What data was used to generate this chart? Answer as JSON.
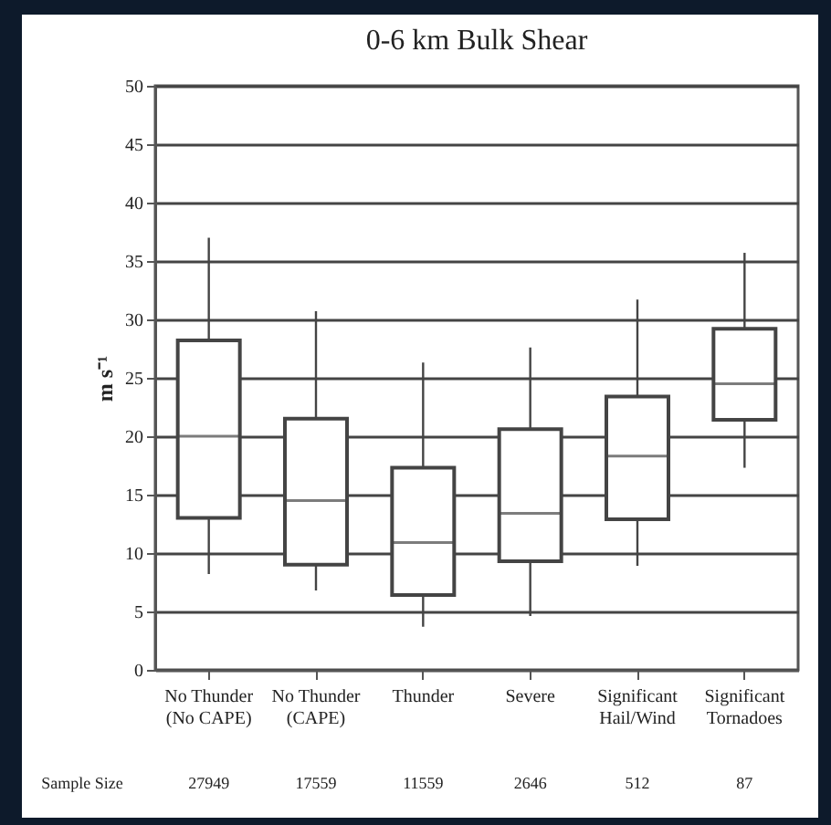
{
  "chart_data": {
    "type": "box",
    "title": "0-6 km Bulk Shear",
    "ylabel": "m s⁻¹",
    "categories": [
      "No Thunder\n(No CAPE)",
      "No Thunder\n(CAPE)",
      "Thunder",
      "Severe",
      "Significant\nHail/Wind",
      "Significant\nTornadoes"
    ],
    "boxes": [
      {
        "low": 8.2,
        "q1": 13,
        "median": 20,
        "q3": 28.2,
        "high": 37
      },
      {
        "low": 6.8,
        "q1": 9,
        "median": 14.5,
        "q3": 21.5,
        "high": 30.7
      },
      {
        "low": 3.7,
        "q1": 6.4,
        "median": 10.9,
        "q3": 17.3,
        "high": 26.3
      },
      {
        "low": 4.6,
        "q1": 9.3,
        "median": 13.4,
        "q3": 20.6,
        "high": 27.6
      },
      {
        "low": 8.9,
        "q1": 12.9,
        "median": 18.3,
        "q3": 23.4,
        "high": 31.7
      },
      {
        "low": 17.3,
        "q1": 21.4,
        "median": 24.5,
        "q3": 29.2,
        "high": 35.7
      }
    ],
    "ylim": [
      0,
      50
    ],
    "yticks": [
      0,
      5,
      10,
      15,
      20,
      25,
      30,
      35,
      40,
      45,
      50
    ],
    "grid": "y",
    "annotations": [
      "Sample Size",
      "27949",
      "17559",
      "11559",
      "2646",
      "512",
      "87"
    ]
  }
}
